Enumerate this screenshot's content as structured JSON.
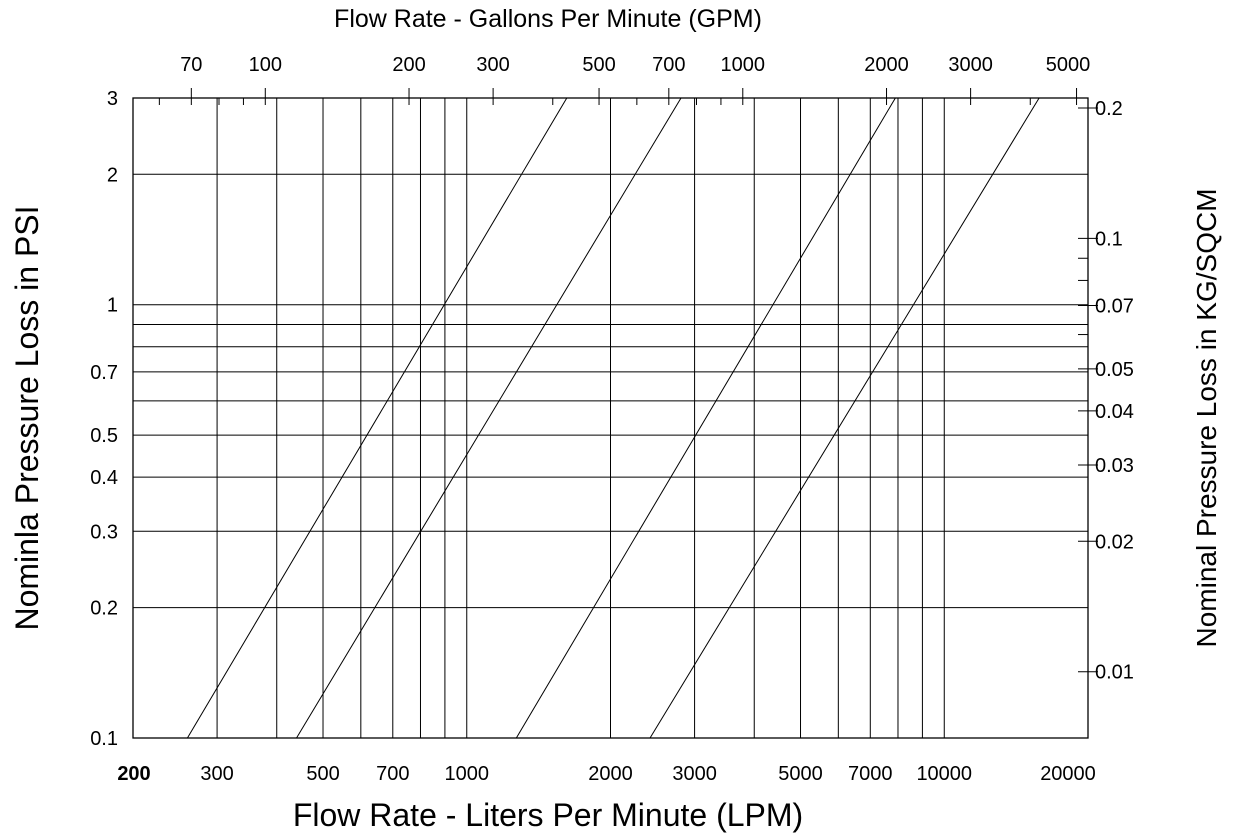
{
  "chart_data": {
    "type": "line",
    "title": "",
    "xlabel_bottom": "Flow Rate -  Liters Per Minute (LPM)",
    "xlabel_top": "Flow Rate - Gallons Per Minute (GPM)",
    "ylabel_left": "Nominla Pressure Loss in PSI",
    "ylabel_right": "Nominal Pressure Loss in KG/SQCM",
    "x_scale": "log",
    "y_scale": "log",
    "xlim": [
      200,
      20000
    ],
    "ylim": [
      0.1,
      3
    ],
    "grid": true,
    "x_ticks_bottom": [
      "200",
      "300",
      "500",
      "700",
      "1000",
      "2000",
      "3000",
      "5000",
      "7000",
      "10000",
      "20000"
    ],
    "x_ticks_top": [
      "70",
      "100",
      "200",
      "300",
      "500",
      "700",
      "1000",
      "2000",
      "3000",
      "5000"
    ],
    "y_ticks_left": [
      "0.1",
      "0.2",
      "0.3",
      "0.4",
      "0.5",
      "0.7",
      "1",
      "2",
      "3"
    ],
    "y_ticks_right": [
      "0.2",
      "0.1",
      "0.07",
      "0.05",
      "0.04",
      "0.03",
      "0.02",
      "0.01"
    ],
    "series": [
      {
        "x": [
          260,
          1620
        ],
        "y": [
          0.1,
          3
        ]
      },
      {
        "x": [
          440,
          2810
        ],
        "y": [
          0.1,
          3
        ]
      },
      {
        "x": [
          1270,
          7900
        ],
        "y": [
          0.1,
          3
        ]
      },
      {
        "x": [
          2420,
          15800
        ],
        "y": [
          0.1,
          3
        ]
      }
    ]
  }
}
